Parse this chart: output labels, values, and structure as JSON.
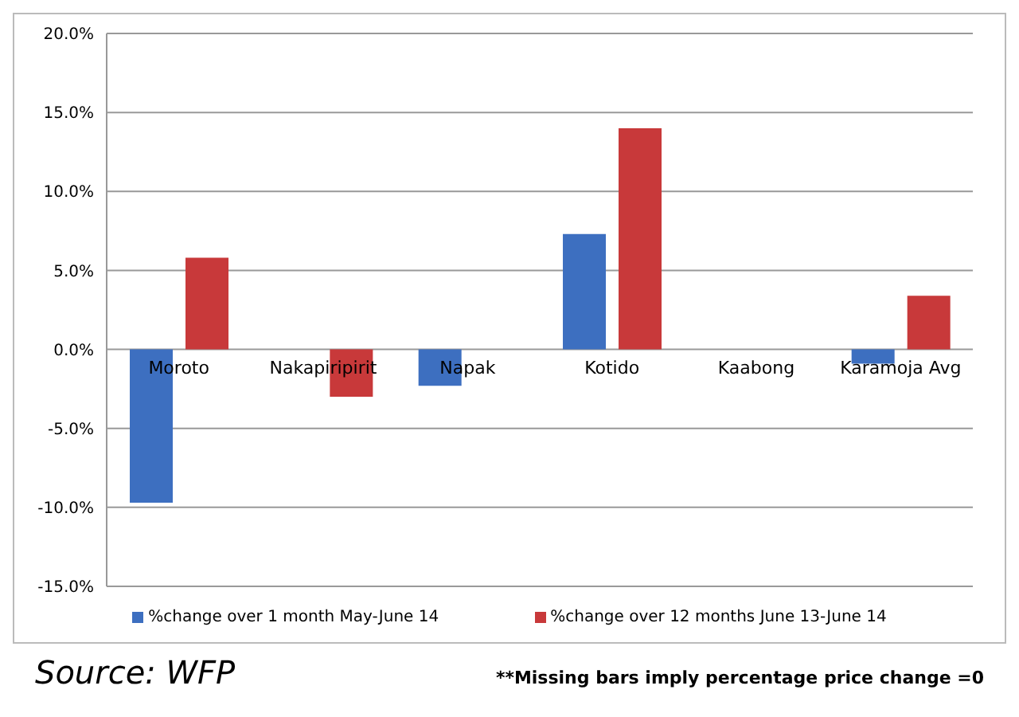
{
  "chart_data": {
    "type": "bar",
    "categories": [
      "Moroto",
      "Nakapiripirit",
      "Napak",
      "Kotido",
      "Kaabong",
      "Karamoja Avg"
    ],
    "series": [
      {
        "name": "%change over 1 month  May-June 14",
        "color": "#3d6fc0",
        "values": [
          -9.7,
          0,
          -2.3,
          7.3,
          0,
          -0.9
        ]
      },
      {
        "name": "%change over 12 months   June 13-June 14",
        "color": "#c8393a",
        "values": [
          5.8,
          -3.0,
          0,
          14.0,
          0,
          3.4
        ]
      }
    ],
    "ylim": [
      -15,
      20
    ],
    "yticks": [
      {
        "value": -15,
        "label": "-15.0%"
      },
      {
        "value": -10,
        "label": "-10.0%"
      },
      {
        "value": -5,
        "label": "-5.0%"
      },
      {
        "value": 0,
        "label": "0.0%"
      },
      {
        "value": 5,
        "label": "5.0%"
      },
      {
        "value": 10,
        "label": "10.0%"
      },
      {
        "value": 15,
        "label": "15.0%"
      },
      {
        "value": 20,
        "label": "20.0%"
      }
    ],
    "grid": "y",
    "legend": "bottom",
    "annotations": [
      "Source: WFP",
      "**Missing bars imply percentage price change =0"
    ]
  }
}
